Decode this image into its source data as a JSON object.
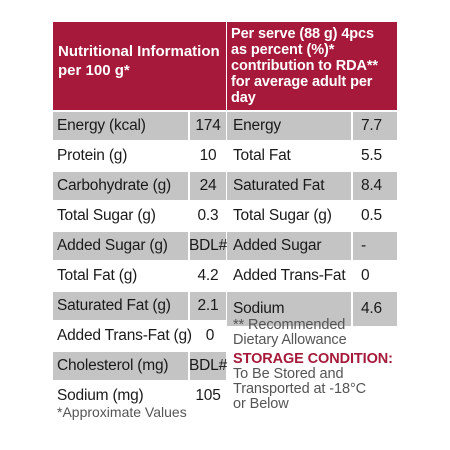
{
  "left": {
    "header": "Nutritional Information\nper 100 g*",
    "rows": [
      {
        "label": "Energy (kcal)",
        "value": "174"
      },
      {
        "label": "Protein (g)",
        "value": "10"
      },
      {
        "label": "Carbohydrate (g)",
        "value": "24"
      },
      {
        "label": "Total Sugar (g)",
        "value": "0.3"
      },
      {
        "label": "Added Sugar (g)",
        "value": "BDL#"
      },
      {
        "label": "Total Fat (g)",
        "value": "4.2"
      },
      {
        "label": "Saturated Fat (g)",
        "value": "2.1"
      },
      {
        "label": "Added Trans-Fat (g)",
        "value": "0"
      },
      {
        "label": "Cholesterol (mg)",
        "value": "BDL#"
      },
      {
        "label": "Sodium (mg)",
        "value": "105"
      }
    ],
    "footnote": "*Approximate Values"
  },
  "right": {
    "header": "Per serve (88 g) 4pcs\nas percent (%)*\ncontribution to RDA**\nfor average adult per day",
    "rows": [
      {
        "label": "Energy",
        "value": "7.7"
      },
      {
        "label": "Total Fat",
        "value": "5.5"
      },
      {
        "label": "Saturated Fat",
        "value": "8.4"
      },
      {
        "label": "Total Sugar (g)",
        "value": "0.5"
      },
      {
        "label": "Added Sugar",
        "value": "-"
      },
      {
        "label": "Added Trans-Fat",
        "value": "0"
      },
      {
        "label": "Sodium",
        "value": "4.6"
      }
    ],
    "recommended_note": "** Recommended\nDietary Allowance",
    "storage_title": "STORAGE CONDITION:",
    "storage_text": "To Be Stored and\nTransported at -18°C\nor Below"
  },
  "colors": {
    "header_bg": "#a6193a",
    "shaded_row": "#c4c4c4",
    "storage_title": "#a6193a"
  }
}
